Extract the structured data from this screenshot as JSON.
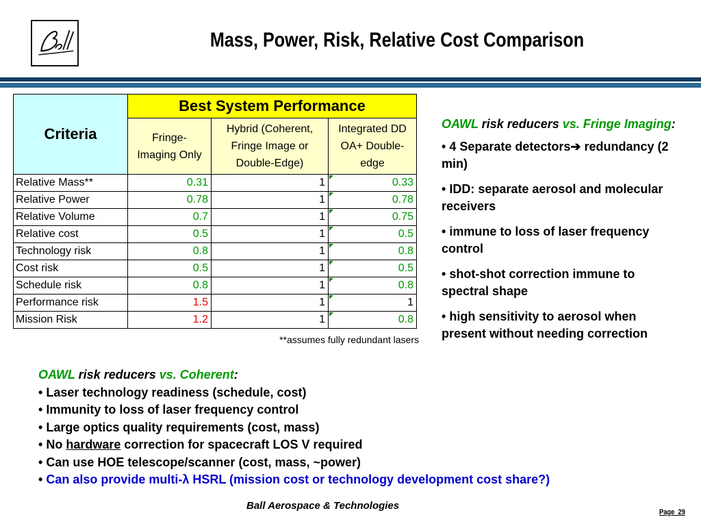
{
  "logo_text": "Ball",
  "title": "Mass, Power, Risk, Relative Cost Comparison",
  "table": {
    "criteria_header": "Criteria",
    "group_header": "Best System Performance",
    "columns": [
      {
        "label_line1": "Fringe-",
        "label_line2": "Imaging Only",
        "label_line3": ""
      },
      {
        "label_line1": "Hybrid (Coherent,",
        "label_line2": "Fringe Image or",
        "label_line3": "Double-Edge)"
      },
      {
        "label_line1": "Integrated DD",
        "label_line2": "OA+ Double-",
        "label_line3": "edge"
      }
    ],
    "rows": [
      {
        "criterion": "Relative Mass**",
        "fringe": "0.31",
        "hybrid": "1",
        "idd": "0.33",
        "fringe_color": "green",
        "idd_color": "green"
      },
      {
        "criterion": "Relative Power",
        "fringe": "0.78",
        "hybrid": "1",
        "idd": "0.78",
        "fringe_color": "green",
        "idd_color": "green"
      },
      {
        "criterion": "Relative Volume",
        "fringe": "0.7",
        "hybrid": "1",
        "idd": "0.75",
        "fringe_color": "green",
        "idd_color": "green"
      },
      {
        "criterion": "Relative cost",
        "fringe": "0.5",
        "hybrid": "1",
        "idd": "0.5",
        "fringe_color": "green",
        "idd_color": "green"
      },
      {
        "criterion": "Technology risk",
        "fringe": "0.8",
        "hybrid": "1",
        "idd": "0.8",
        "fringe_color": "green",
        "idd_color": "green"
      },
      {
        "criterion": "Cost risk",
        "fringe": "0.5",
        "hybrid": "1",
        "idd": "0.5",
        "fringe_color": "green",
        "idd_color": "green"
      },
      {
        "criterion": "Schedule risk",
        "fringe": "0.8",
        "hybrid": "1",
        "idd": "0.8",
        "fringe_color": "green",
        "idd_color": "green"
      },
      {
        "criterion": "Performance risk",
        "fringe": "1.5",
        "hybrid": "1",
        "idd": "1",
        "fringe_color": "red",
        "idd_color": "black"
      },
      {
        "criterion": "Mission Risk",
        "fringe": "1.2",
        "hybrid": "1",
        "idd": "0.8",
        "fringe_color": "red",
        "idd_color": "green"
      }
    ],
    "footnote": "**assumes fully redundant lasers"
  },
  "right_panel": {
    "heading_part1": "OAWL",
    "heading_part2": " risk reducers ",
    "heading_part3": "vs. Fringe Imaging",
    "heading_part4": ":",
    "bullet": "•",
    "points": [
      "4 Separate detectors➔ redundancy (2 min)",
      "IDD: separate aerosol and molecular receivers",
      "immune to loss of laser frequency control",
      "shot-shot correction immune to spectral shape",
      "high sensitivity to aerosol when present without needing correction"
    ]
  },
  "bottom_panel": {
    "heading_part1": "OAWL",
    "heading_part2": " risk reducers ",
    "heading_part3": "vs. Coherent",
    "heading_part4": ":",
    "bullet": "•",
    "points": [
      "Laser technology readiness (schedule, cost)",
      "Immunity to loss of laser frequency control",
      "Large optics quality requirements (cost, mass)"
    ],
    "hardware_line": {
      "pre": "No ",
      "underlined": "hardware",
      "post": " correction for spacecraft LOS V required"
    },
    "hoe_line": "Can use HOE telescope/scanner (cost, mass, ~power)",
    "multi_line": "Can also provide multi-λ HSRL (mission cost or technology development cost share?)"
  },
  "footer": "Ball Aerospace & Technologies",
  "page_number": "Page_29",
  "colors": {
    "green": "#009900",
    "red": "#e00000",
    "blue": "#0000cc",
    "band_dark": "#123b62",
    "band_light": "#2e6b96"
  }
}
